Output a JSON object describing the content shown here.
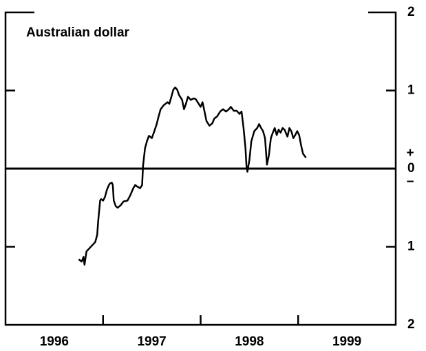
{
  "chart_data": {
    "type": "line",
    "title": "Australian dollar",
    "categories": [
      "1996",
      "1997",
      "1998",
      "1999"
    ],
    "xlim": [
      1996,
      2000
    ],
    "xticks": [
      1997,
      1998,
      1999
    ],
    "ylim": [
      -2,
      2
    ],
    "yticks": [
      2,
      1,
      0,
      {
        "value": -1,
        "label": "1"
      },
      {
        "value": -2,
        "label": "2"
      }
    ],
    "annotations": [
      "+",
      "−"
    ],
    "series": [
      {
        "name": "Australian dollar",
        "color": "#000000",
        "x": [
          1996.75,
          1996.78,
          1996.8,
          1996.81,
          1996.83,
          1996.86,
          1996.89,
          1996.92,
          1996.94,
          1996.95,
          1996.97,
          1996.98,
          1997.0,
          1997.02,
          1997.04,
          1997.06,
          1997.07,
          1997.09,
          1997.1,
          1997.11,
          1997.13,
          1997.15,
          1997.18,
          1997.21,
          1997.25,
          1997.28,
          1997.31,
          1997.33,
          1997.35,
          1997.38,
          1997.4,
          1997.41,
          1997.43,
          1997.45,
          1997.47,
          1997.5,
          1997.52,
          1997.55,
          1997.57,
          1997.59,
          1997.62,
          1997.64,
          1997.66,
          1997.68,
          1997.7,
          1997.72,
          1997.74,
          1997.76,
          1997.78,
          1997.81,
          1997.83,
          1997.85,
          1997.87,
          1997.9,
          1997.93,
          1997.95,
          1997.98,
          1998.0,
          1998.02,
          1998.04,
          1998.06,
          1998.09,
          1998.12,
          1998.14,
          1998.17,
          1998.2,
          1998.23,
          1998.26,
          1998.29,
          1998.31,
          1998.34,
          1998.37,
          1998.4,
          1998.42,
          1998.44,
          1998.46,
          1998.47,
          1998.48,
          1998.5,
          1998.52,
          1998.55,
          1998.58,
          1998.6,
          1998.62,
          1998.64,
          1998.66,
          1998.68,
          1998.7,
          1998.72,
          1998.74,
          1998.76,
          1998.78,
          1998.8,
          1998.82,
          1998.84,
          1998.86,
          1998.89,
          1998.91,
          1998.93,
          1998.95,
          1998.97,
          1998.99,
          1999.01,
          1999.03,
          1999.05,
          1999.08
        ],
        "values": [
          -1.16,
          -1.19,
          -1.13,
          -1.23,
          -1.06,
          -1.02,
          -0.98,
          -0.94,
          -0.85,
          -0.67,
          -0.41,
          -0.39,
          -0.41,
          -0.36,
          -0.27,
          -0.21,
          -0.19,
          -0.18,
          -0.21,
          -0.41,
          -0.48,
          -0.5,
          -0.47,
          -0.42,
          -0.41,
          -0.34,
          -0.25,
          -0.21,
          -0.23,
          -0.25,
          -0.21,
          0.04,
          0.26,
          0.35,
          0.42,
          0.39,
          0.46,
          0.57,
          0.67,
          0.76,
          0.81,
          0.83,
          0.85,
          0.83,
          0.92,
          1.01,
          1.04,
          1.01,
          0.94,
          0.88,
          0.76,
          0.83,
          0.92,
          0.88,
          0.9,
          0.89,
          0.83,
          0.79,
          0.85,
          0.73,
          0.61,
          0.55,
          0.58,
          0.64,
          0.67,
          0.73,
          0.76,
          0.73,
          0.76,
          0.79,
          0.74,
          0.74,
          0.7,
          0.73,
          0.52,
          0.26,
          0.04,
          -0.04,
          0.11,
          0.35,
          0.48,
          0.52,
          0.57,
          0.52,
          0.48,
          0.39,
          0.05,
          0.17,
          0.39,
          0.46,
          0.52,
          0.43,
          0.5,
          0.46,
          0.52,
          0.5,
          0.41,
          0.52,
          0.48,
          0.39,
          0.43,
          0.48,
          0.43,
          0.3,
          0.19,
          0.14
        ]
      }
    ]
  }
}
